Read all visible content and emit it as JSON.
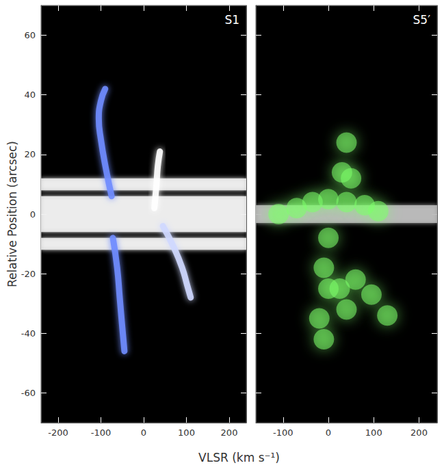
{
  "chart_data": [
    {
      "type": "scatter",
      "title": "S1",
      "xlabel": "VLSR (km s⁻¹)",
      "ylabel": "Relative Position (arcsec)",
      "xlim": [
        -240,
        240
      ],
      "xticks": [
        -200,
        -100,
        0,
        100,
        200
      ],
      "ylim": [
        -70,
        70
      ],
      "yticks": [
        -60,
        -40,
        -20,
        0,
        20,
        40,
        60
      ],
      "series": [
        {
          "type": "band",
          "color": "#f2f2f2",
          "values": [
            [
              8,
              12
            ],
            [
              -6,
              6
            ],
            [
              -12,
              -8
            ]
          ]
        },
        {
          "type": "line",
          "color": "#6f8cff",
          "values": [
            [
              -75,
              6
            ],
            [
              -88,
              15
            ],
            [
              -100,
              25
            ],
            [
              -105,
              32
            ],
            [
              -100,
              38
            ],
            [
              -90,
              42
            ]
          ]
        },
        {
          "type": "line",
          "color": "#6f8cff",
          "values": [
            [
              -72,
              -8
            ],
            [
              -62,
              -18
            ],
            [
              -56,
              -28
            ],
            [
              -50,
              -38
            ],
            [
              -45,
              -46
            ]
          ]
        },
        {
          "type": "line",
          "color": "#cfd8ff",
          "values": [
            [
              45,
              -4
            ],
            [
              70,
              -11
            ],
            [
              90,
              -18
            ],
            [
              102,
              -24
            ],
            [
              110,
              -28
            ]
          ]
        },
        {
          "type": "line",
          "color": "#ffffff",
          "values": [
            [
              25,
              2
            ],
            [
              30,
              10
            ],
            [
              33,
              16
            ],
            [
              38,
              21
            ]
          ]
        }
      ]
    },
    {
      "type": "scatter",
      "title": "S5′",
      "xlim": [
        -160,
        240
      ],
      "xticks": [
        -100,
        0,
        100,
        200
      ],
      "ylim": [
        -70,
        70
      ],
      "yticks": [
        -60,
        -40,
        -20,
        0,
        20,
        40,
        60
      ],
      "tick_labels": "x",
      "series": [
        {
          "type": "band",
          "color": "#bdbdbd",
          "values": [
            [
              -3,
              3
            ]
          ]
        },
        {
          "type": "scatter",
          "color": "#7dff6a",
          "values": [
            [
              -110,
              0
            ],
            [
              -70,
              2
            ],
            [
              -35,
              4
            ],
            [
              0,
              5
            ],
            [
              40,
              4
            ],
            [
              80,
              3
            ],
            [
              110,
              1
            ],
            [
              30,
              14
            ],
            [
              40,
              24
            ],
            [
              50,
              12
            ],
            [
              0,
              -8
            ],
            [
              -10,
              -18
            ],
            [
              0,
              -25
            ],
            [
              25,
              -25
            ],
            [
              60,
              -22
            ],
            [
              95,
              -27
            ],
            [
              130,
              -34
            ],
            [
              -20,
              -35
            ],
            [
              -10,
              -42
            ],
            [
              40,
              -32
            ]
          ]
        }
      ]
    }
  ]
}
